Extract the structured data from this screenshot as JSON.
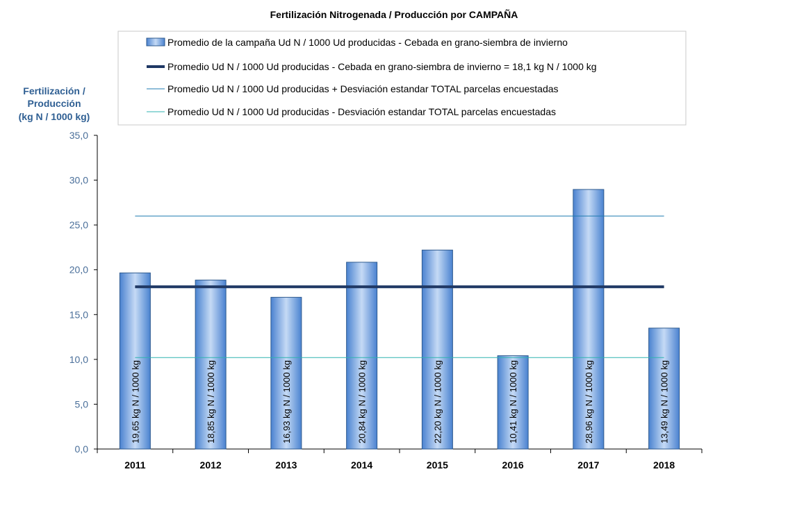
{
  "chart_data": {
    "type": "bar",
    "title": "Fertilización Nitrogenada / Producción por CAMPAÑA",
    "ylabel": [
      "Fertilización /",
      "Producción",
      "(kg N / 1000 kg)"
    ],
    "xlabel": "",
    "categories": [
      "2011",
      "2012",
      "2013",
      "2014",
      "2015",
      "2016",
      "2017",
      "2018"
    ],
    "series": [
      {
        "name": "Promedio de la campaña Ud N / 1000 Ud producidas - Cebada en grano-siembra de invierno",
        "values": [
          19.65,
          18.85,
          16.93,
          20.84,
          22.2,
          10.41,
          28.96,
          13.49
        ],
        "data_labels": [
          "19,65 kg N / 1000 kg",
          "18,85 kg N / 1000 kg",
          "16,93 kg N / 1000 kg",
          "20,84 kg N / 1000 kg",
          "22,20 kg N / 1000 kg",
          "10,41 kg N / 1000 kg",
          "28,96 kg N / 1000 kg",
          "13,49 kg N / 1000 kg"
        ]
      }
    ],
    "reference_lines": [
      {
        "name": "Promedio Ud N / 1000 Ud producidas - Cebada en grano-siembra de invierno = 18,1 kg N / 1000 kg",
        "value": 18.1,
        "color": "#1f3864",
        "style": "thick"
      },
      {
        "name": "Promedio Ud N / 1000 Ud producidas + Desviación estandar TOTAL parcelas encuestadas",
        "value": 26.0,
        "color": "#1f7bb0",
        "style": "thin"
      },
      {
        "name": "Promedio Ud N / 1000 Ud producidas - Desviación estandar TOTAL parcelas encuestadas",
        "value": 10.2,
        "color": "#2fb3b0",
        "style": "thin"
      }
    ],
    "ylim": [
      0,
      35
    ],
    "yticks": [
      0,
      5,
      10,
      15,
      20,
      25,
      30,
      35
    ],
    "ytick_labels": [
      "0,0",
      "5,0",
      "10,0",
      "15,0",
      "20,0",
      "25,0",
      "30,0",
      "35,0"
    ],
    "grid": false,
    "legend_position": "top",
    "colors": {
      "bar": "#6fa0dc",
      "bar_edge": "#2e5a8e",
      "axis": "#000000"
    }
  }
}
